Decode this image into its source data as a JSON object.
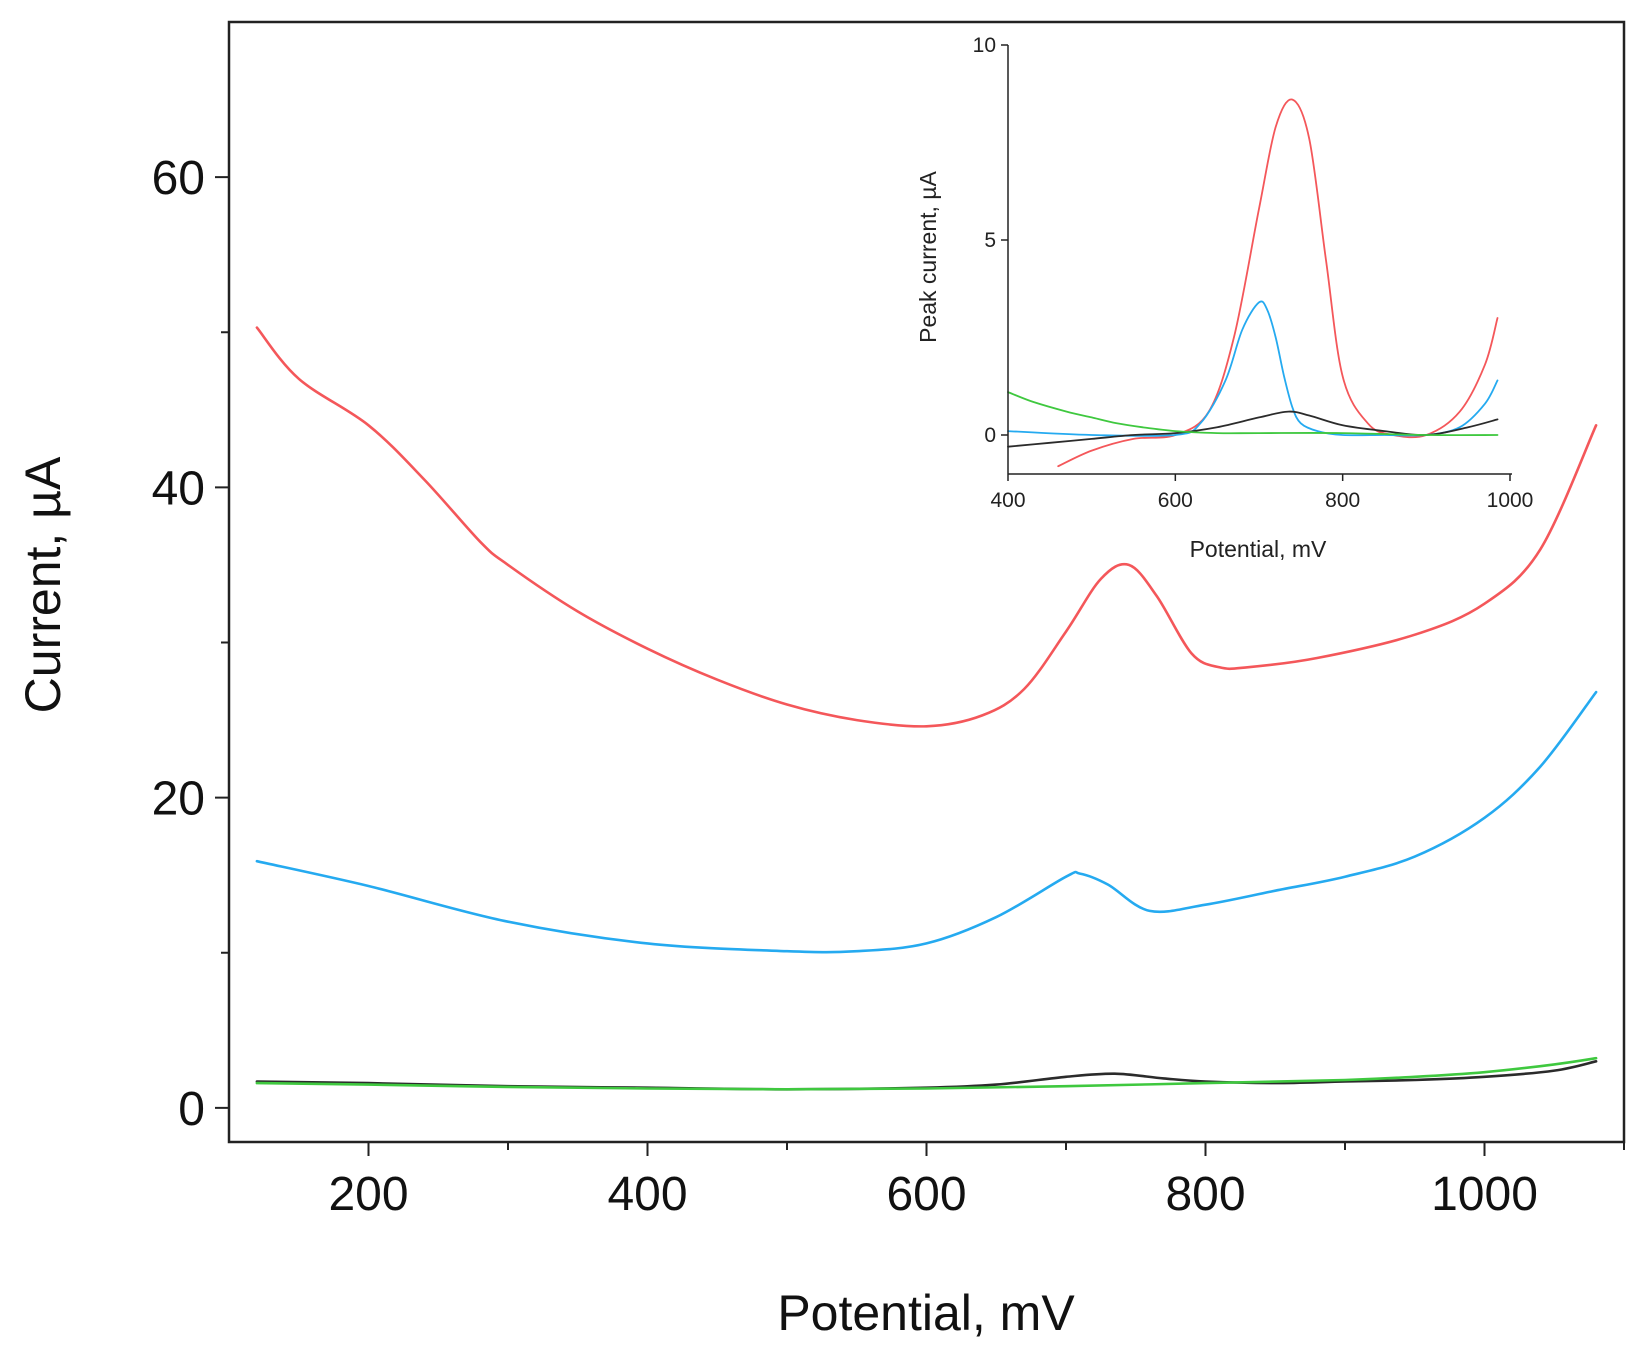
{
  "chart_data": [
    {
      "type": "line",
      "name": "main",
      "title": "",
      "xlabel": "Potential, mV",
      "ylabel": "Current, µA",
      "xlim": [
        100,
        1100
      ],
      "ylim": [
        -2.2,
        70
      ],
      "xticks": [
        200,
        400,
        600,
        800,
        1000
      ],
      "xticks_minor": [
        300,
        500,
        700,
        900,
        1100
      ],
      "yticks": [
        0,
        20,
        40,
        60
      ],
      "yticks_minor": [
        10,
        30,
        50
      ],
      "grid": false,
      "series": [
        {
          "name": "red",
          "color": "#f4575a",
          "x": [
            120,
            150,
            200,
            240,
            280,
            300,
            350,
            400,
            450,
            500,
            550,
            600,
            640,
            670,
            700,
            725,
            745,
            765,
            790,
            810,
            830,
            880,
            950,
            1000,
            1040,
            1080
          ],
          "y": [
            50.3,
            47,
            44,
            40.5,
            36.5,
            35,
            32,
            29.6,
            27.6,
            26,
            25,
            24.6,
            25.3,
            27,
            30.7,
            34.1,
            35,
            33,
            29.3,
            28.4,
            28.4,
            29,
            30.5,
            32.5,
            36,
            44
          ]
        },
        {
          "name": "blue",
          "color": "#25aaf0",
          "x": [
            120,
            200,
            300,
            400,
            500,
            550,
            600,
            650,
            700,
            710,
            730,
            760,
            800,
            850,
            900,
            950,
            1000,
            1040,
            1080
          ],
          "y": [
            15.9,
            14.3,
            12,
            10.6,
            10.1,
            10.1,
            10.6,
            12.3,
            14.9,
            15.1,
            14.4,
            12.7,
            13.1,
            14,
            14.9,
            16.2,
            18.7,
            22,
            26.8
          ]
        },
        {
          "name": "black",
          "color": "#2b2b2b",
          "x": [
            120,
            200,
            300,
            400,
            500,
            600,
            650,
            700,
            735,
            770,
            800,
            850,
            900,
            950,
            1000,
            1050,
            1080
          ],
          "y": [
            1.7,
            1.6,
            1.4,
            1.3,
            1.2,
            1.3,
            1.5,
            2,
            2.2,
            1.9,
            1.7,
            1.6,
            1.7,
            1.8,
            2,
            2.4,
            3
          ]
        },
        {
          "name": "green",
          "color": "#3fc83f",
          "x": [
            120,
            200,
            300,
            400,
            500,
            600,
            700,
            800,
            900,
            950,
            1000,
            1050,
            1080
          ],
          "y": [
            1.6,
            1.5,
            1.35,
            1.25,
            1.2,
            1.25,
            1.4,
            1.6,
            1.8,
            2,
            2.3,
            2.8,
            3.2
          ]
        }
      ]
    },
    {
      "type": "line",
      "name": "inset",
      "title": "",
      "xlabel": "Potential, mV",
      "ylabel": "Peak current, µA",
      "xlim": [
        400,
        1000
      ],
      "ylim": [
        -1,
        10
      ],
      "xticks": [
        400,
        600,
        800,
        1000
      ],
      "yticks": [
        0,
        5,
        10
      ],
      "grid": false,
      "series": [
        {
          "name": "red",
          "color": "#f4575a",
          "x": [
            460,
            500,
            550,
            600,
            640,
            670,
            700,
            720,
            740,
            760,
            780,
            800,
            830,
            860,
            900,
            940,
            970,
            985
          ],
          "y": [
            -0.8,
            -0.4,
            -0.1,
            0,
            0.6,
            2.5,
            5.8,
            7.9,
            8.6,
            7.6,
            4.5,
            1.5,
            0.3,
            0,
            0,
            0.6,
            1.8,
            3
          ]
        },
        {
          "name": "blue",
          "color": "#25aaf0",
          "x": [
            400,
            500,
            600,
            630,
            660,
            680,
            700,
            710,
            720,
            730,
            740,
            750,
            770,
            800,
            850,
            900,
            940,
            970,
            985
          ],
          "y": [
            0.1,
            0,
            0,
            0.3,
            1.4,
            2.7,
            3.4,
            3.2,
            2.5,
            1.5,
            0.7,
            0.3,
            0.1,
            0,
            0,
            0,
            0.2,
            0.8,
            1.4
          ]
        },
        {
          "name": "black",
          "color": "#2b2b2b",
          "x": [
            400,
            450,
            500,
            550,
            600,
            650,
            700,
            735,
            760,
            800,
            850,
            900,
            950,
            985
          ],
          "y": [
            -0.3,
            -0.2,
            -0.1,
            0,
            0.05,
            0.2,
            0.45,
            0.6,
            0.5,
            0.25,
            0.1,
            0,
            0.2,
            0.4
          ]
        },
        {
          "name": "green",
          "color": "#3fc83f",
          "x": [
            400,
            430,
            470,
            500,
            530,
            560,
            600,
            650,
            700,
            800,
            900,
            985
          ],
          "y": [
            1.1,
            0.85,
            0.6,
            0.45,
            0.3,
            0.2,
            0.1,
            0.05,
            0.05,
            0.05,
            0,
            0
          ]
        }
      ]
    }
  ]
}
